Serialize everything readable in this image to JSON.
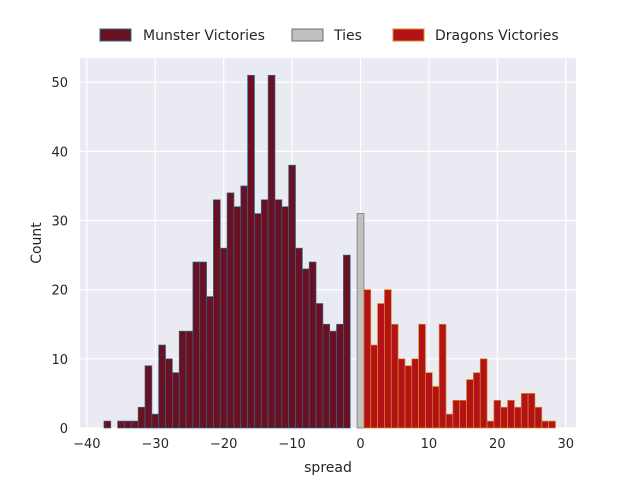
{
  "chart_data": {
    "type": "bar",
    "title": "",
    "xlabel": "spread",
    "ylabel": "Count",
    "xlim": [
      -41,
      31.5
    ],
    "ylim": [
      0,
      53.5
    ],
    "xticks": [
      -40,
      -30,
      -20,
      -10,
      0,
      10,
      20,
      30
    ],
    "yticks": [
      0,
      10,
      20,
      30,
      40,
      50
    ],
    "grid": true,
    "legend_position": "top-center",
    "series": [
      {
        "name": "Munster Victories",
        "color": "#6b0f23",
        "edge": "#2e6d86",
        "x": [
          -37,
          -36,
          -35,
          -34,
          -33,
          -32,
          -31,
          -30,
          -29,
          -28,
          -27,
          -26,
          -25,
          -24,
          -23,
          -22,
          -21,
          -20,
          -19,
          -18,
          -17,
          -16,
          -15,
          -14,
          -13,
          -12,
          -11,
          -10,
          -9,
          -8,
          -7,
          -6,
          -5,
          -4,
          -3,
          -2,
          -1
        ],
        "values": [
          1,
          0,
          1,
          1,
          1,
          3,
          9,
          2,
          12,
          10,
          8,
          14,
          14,
          24,
          24,
          19,
          33,
          26,
          34,
          32,
          35,
          51,
          31,
          33,
          51,
          33,
          32,
          38,
          26,
          23,
          24,
          18,
          15,
          14,
          15,
          25,
          0
        ]
      },
      {
        "name": "Ties",
        "color": "#c0c0c0",
        "edge": "#6e6e6e",
        "x": [
          0
        ],
        "values": [
          31
        ]
      },
      {
        "name": "Dragons Victories",
        "color": "#b21218",
        "edge": "#d98b1e",
        "x": [
          1,
          2,
          3,
          4,
          5,
          6,
          7,
          8,
          9,
          10,
          11,
          12,
          13,
          14,
          15,
          16,
          17,
          18,
          19,
          20,
          21,
          22,
          23,
          24,
          25,
          26,
          27,
          28
        ],
        "values": [
          20,
          12,
          18,
          20,
          15,
          10,
          9,
          10,
          15,
          8,
          6,
          15,
          2,
          4,
          4,
          7,
          8,
          10,
          1,
          4,
          3,
          4,
          3,
          5,
          5,
          3,
          1,
          1
        ]
      }
    ]
  }
}
